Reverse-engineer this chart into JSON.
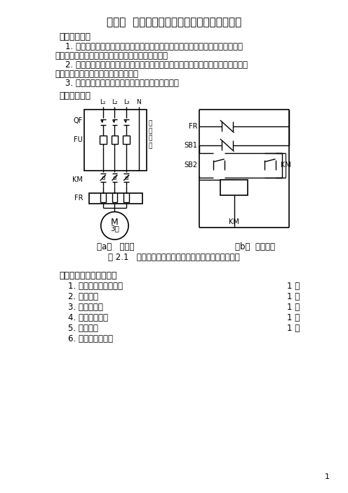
{
  "title": "实验二  三相异步电动机单向全压起动停止控制",
  "s1_title": "一、实验目的",
  "s1_p1a": "    1. 熟悉三相异步电动机单方向全压起动和停止线路中各电器元件的结构、工作原",
  "s1_p1b": "理、型号规格、使用方法及在线路中所起的作用等。",
  "s1_p2a": "    2. 掌握三相异步电动机单方向起动、停止和带自锁功能的连动控制的工作原理、接",
  "s1_p2b": "线方法，学习分析和排除故障的方法。",
  "s1_p3": "    3. 学习转速表的使用方法，掌握测量转速的方法。",
  "s2_title": "二、实验线路",
  "sub_a": "（a）   主电路",
  "sub_b": "（b）  控制线路",
  "fig_cap": "图 2.1   三相异步电动机单方向全压起停及点动控制线路",
  "s3_title": "三、实验设备及电器元件",
  "s3_items": [
    [
      "1. 三相笼型异步电动机",
      "1 台"
    ],
    [
      "2. 自动开关",
      "1 只"
    ],
    [
      "3. 交流接触器",
      "1 只"
    ],
    [
      "4. 双联复式按钮",
      "1 只"
    ],
    [
      "5. 热继电器",
      "1 只"
    ],
    [
      "6. 电工工具及导线",
      ""
    ]
  ],
  "page_num": "1",
  "bg": "#ffffff",
  "fg": "#000000"
}
